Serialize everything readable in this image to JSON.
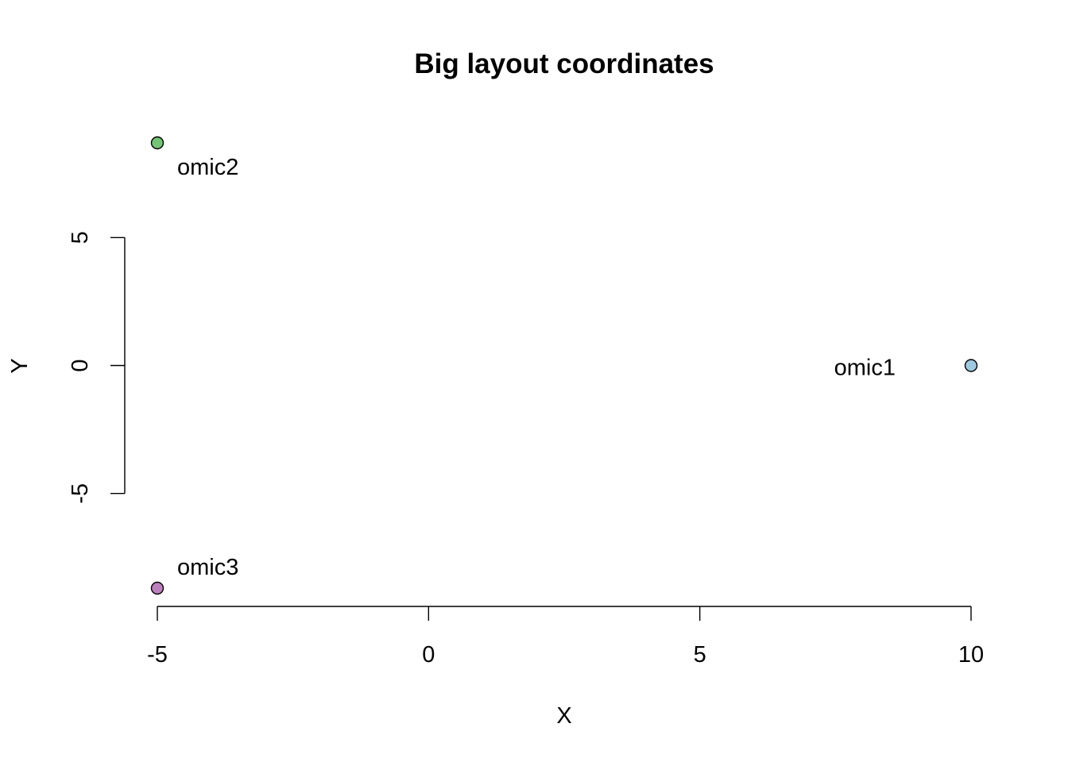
{
  "chart_data": {
    "type": "scatter",
    "title": "Big layout coordinates",
    "xlabel": "X",
    "ylabel": "Y",
    "xticks": [
      -5,
      0,
      5,
      10
    ],
    "yticks": [
      -5,
      0,
      5
    ],
    "xlim": [
      -5,
      10
    ],
    "ylim": [
      -8.7,
      8.7
    ],
    "grid": false,
    "points": [
      {
        "label": "omic1",
        "x": 10,
        "y": 0,
        "color": "#9ecae1",
        "label_side": "left"
      },
      {
        "label": "omic2",
        "x": -5,
        "y": 8.7,
        "color": "#74c476",
        "label_side": "below-right"
      },
      {
        "label": "omic3",
        "x": -5,
        "y": -8.7,
        "color": "#bc80bd",
        "label_side": "above-right"
      }
    ]
  }
}
